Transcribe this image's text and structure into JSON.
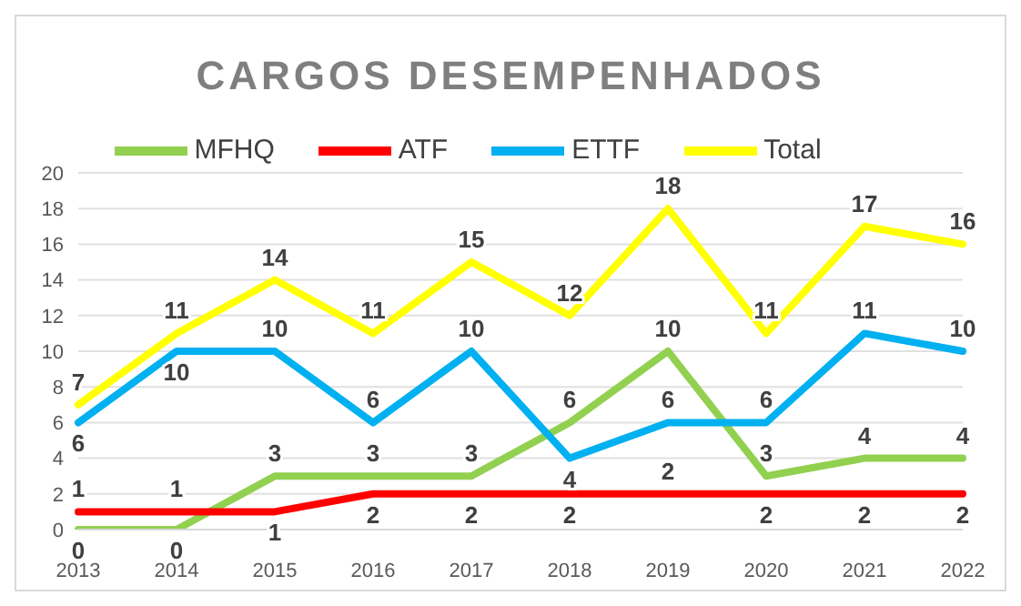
{
  "chart_data": {
    "type": "line",
    "title": "CARGOS DESEMPENHADOS",
    "categories": [
      "2013",
      "2014",
      "2015",
      "2016",
      "2017",
      "2018",
      "2019",
      "2020",
      "2021",
      "2022"
    ],
    "series": [
      {
        "name": "MFHQ",
        "color": "#92d050",
        "values": [
          0,
          0,
          3,
          3,
          3,
          6,
          10,
          3,
          4,
          4
        ]
      },
      {
        "name": "ATF",
        "color": "#ff0000",
        "values": [
          1,
          1,
          1,
          2,
          2,
          2,
          2,
          2,
          2,
          2
        ]
      },
      {
        "name": "ETTF",
        "color": "#00b0f0",
        "values": [
          6,
          10,
          10,
          6,
          10,
          4,
          6,
          6,
          11,
          10
        ]
      },
      {
        "name": "Total",
        "color": "#ffff00",
        "values": [
          7,
          11,
          14,
          11,
          15,
          12,
          18,
          11,
          17,
          16
        ]
      }
    ],
    "ylim": [
      0,
      20
    ],
    "yticks": [
      0,
      2,
      4,
      6,
      8,
      10,
      12,
      14,
      16,
      18,
      20
    ],
    "grid": "y",
    "legend": "top",
    "marker": "none",
    "line_style": "solid",
    "data_labels": true
  }
}
